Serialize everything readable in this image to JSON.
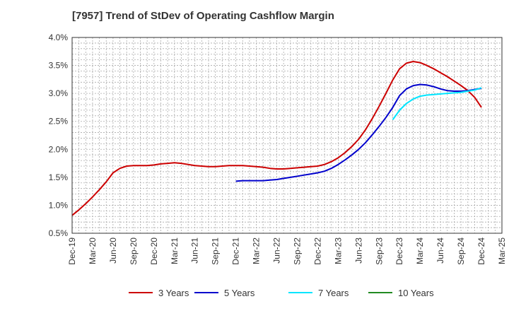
{
  "chart_data": {
    "type": "line",
    "title": "[7957]  Trend of StDev of Operating Cashflow Margin",
    "xlabel": "",
    "ylabel": "",
    "x_ticks": [
      "Dec-19",
      "Mar-20",
      "Jun-20",
      "Sep-20",
      "Dec-20",
      "Mar-21",
      "Jun-21",
      "Sep-21",
      "Dec-21",
      "Mar-22",
      "Jun-22",
      "Sep-22",
      "Dec-22",
      "Mar-23",
      "Jun-23",
      "Sep-23",
      "Dec-23",
      "Mar-24",
      "Jun-24",
      "Sep-24",
      "Dec-24",
      "Mar-25"
    ],
    "y_ticks": [
      "0.5%",
      "1.0%",
      "1.5%",
      "2.0%",
      "2.5%",
      "3.0%",
      "3.5%",
      "4.0%"
    ],
    "ylim": [
      0.5,
      4.0
    ],
    "grid": true,
    "legend_position": "bottom",
    "series": [
      {
        "name": "3 Years",
        "color": "#cc0000",
        "points": [
          [
            "Dec-19",
            0.82
          ],
          [
            "Jan-20",
            0.92
          ],
          [
            "Feb-20",
            1.03
          ],
          [
            "Mar-20",
            1.15
          ],
          [
            "Apr-20",
            1.28
          ],
          [
            "May-20",
            1.42
          ],
          [
            "Jun-20",
            1.58
          ],
          [
            "Jul-20",
            1.66
          ],
          [
            "Aug-20",
            1.7
          ],
          [
            "Sep-20",
            1.71
          ],
          [
            "Oct-20",
            1.71
          ],
          [
            "Nov-20",
            1.71
          ],
          [
            "Dec-20",
            1.72
          ],
          [
            "Jan-21",
            1.74
          ],
          [
            "Feb-21",
            1.75
          ],
          [
            "Mar-21",
            1.76
          ],
          [
            "Apr-21",
            1.75
          ],
          [
            "May-21",
            1.73
          ],
          [
            "Jun-21",
            1.71
          ],
          [
            "Jul-21",
            1.7
          ],
          [
            "Aug-21",
            1.69
          ],
          [
            "Sep-21",
            1.69
          ],
          [
            "Oct-21",
            1.7
          ],
          [
            "Nov-21",
            1.71
          ],
          [
            "Dec-21",
            1.71
          ],
          [
            "Jan-22",
            1.71
          ],
          [
            "Feb-22",
            1.7
          ],
          [
            "Mar-22",
            1.69
          ],
          [
            "Apr-22",
            1.68
          ],
          [
            "May-22",
            1.66
          ],
          [
            "Jun-22",
            1.65
          ],
          [
            "Jul-22",
            1.65
          ],
          [
            "Aug-22",
            1.66
          ],
          [
            "Sep-22",
            1.67
          ],
          [
            "Oct-22",
            1.68
          ],
          [
            "Nov-22",
            1.69
          ],
          [
            "Dec-22",
            1.7
          ],
          [
            "Jan-23",
            1.73
          ],
          [
            "Feb-23",
            1.78
          ],
          [
            "Mar-23",
            1.85
          ],
          [
            "Apr-23",
            1.94
          ],
          [
            "May-23",
            2.05
          ],
          [
            "Jun-23",
            2.18
          ],
          [
            "Jul-23",
            2.35
          ],
          [
            "Aug-23",
            2.55
          ],
          [
            "Sep-23",
            2.77
          ],
          [
            "Oct-23",
            3.0
          ],
          [
            "Nov-23",
            3.24
          ],
          [
            "Dec-23",
            3.44
          ],
          [
            "Jan-24",
            3.54
          ],
          [
            "Feb-24",
            3.57
          ],
          [
            "Mar-24",
            3.55
          ],
          [
            "Apr-24",
            3.5
          ],
          [
            "May-24",
            3.44
          ],
          [
            "Jun-24",
            3.37
          ],
          [
            "Jul-24",
            3.3
          ],
          [
            "Aug-24",
            3.22
          ],
          [
            "Sep-24",
            3.14
          ],
          [
            "Oct-24",
            3.05
          ],
          [
            "Nov-24",
            2.93
          ],
          [
            "Dec-24",
            2.75
          ]
        ]
      },
      {
        "name": "5 Years",
        "color": "#0000cc",
        "points": [
          [
            "Dec-21",
            1.43
          ],
          [
            "Jan-22",
            1.44
          ],
          [
            "Feb-22",
            1.44
          ],
          [
            "Mar-22",
            1.44
          ],
          [
            "Apr-22",
            1.44
          ],
          [
            "May-22",
            1.45
          ],
          [
            "Jun-22",
            1.46
          ],
          [
            "Jul-22",
            1.48
          ],
          [
            "Aug-22",
            1.5
          ],
          [
            "Sep-22",
            1.52
          ],
          [
            "Oct-22",
            1.54
          ],
          [
            "Nov-22",
            1.56
          ],
          [
            "Dec-22",
            1.58
          ],
          [
            "Jan-23",
            1.61
          ],
          [
            "Feb-23",
            1.66
          ],
          [
            "Mar-23",
            1.73
          ],
          [
            "Apr-23",
            1.81
          ],
          [
            "May-23",
            1.9
          ],
          [
            "Jun-23",
            2.0
          ],
          [
            "Jul-23",
            2.12
          ],
          [
            "Aug-23",
            2.26
          ],
          [
            "Sep-23",
            2.41
          ],
          [
            "Oct-23",
            2.57
          ],
          [
            "Nov-23",
            2.75
          ],
          [
            "Dec-23",
            2.96
          ],
          [
            "Jan-24",
            3.08
          ],
          [
            "Feb-24",
            3.14
          ],
          [
            "Mar-24",
            3.16
          ],
          [
            "Apr-24",
            3.15
          ],
          [
            "May-24",
            3.12
          ],
          [
            "Jun-24",
            3.08
          ],
          [
            "Jul-24",
            3.05
          ],
          [
            "Aug-24",
            3.04
          ],
          [
            "Sep-24",
            3.04
          ],
          [
            "Oct-24",
            3.05
          ],
          [
            "Nov-24",
            3.07
          ],
          [
            "Dec-24",
            3.09
          ]
        ]
      },
      {
        "name": "7 Years",
        "color": "#00e5ff",
        "points": [
          [
            "Nov-23",
            2.53
          ],
          [
            "Dec-23",
            2.7
          ],
          [
            "Jan-24",
            2.82
          ],
          [
            "Feb-24",
            2.9
          ],
          [
            "Mar-24",
            2.95
          ],
          [
            "Apr-24",
            2.97
          ],
          [
            "May-24",
            2.98
          ],
          [
            "Jun-24",
            2.99
          ],
          [
            "Jul-24",
            3.0
          ],
          [
            "Aug-24",
            3.01
          ],
          [
            "Sep-24",
            3.02
          ],
          [
            "Oct-24",
            3.04
          ],
          [
            "Nov-24",
            3.06
          ],
          [
            "Dec-24",
            3.1
          ]
        ]
      },
      {
        "name": "10 Years",
        "color": "#228b22",
        "points": []
      }
    ]
  }
}
